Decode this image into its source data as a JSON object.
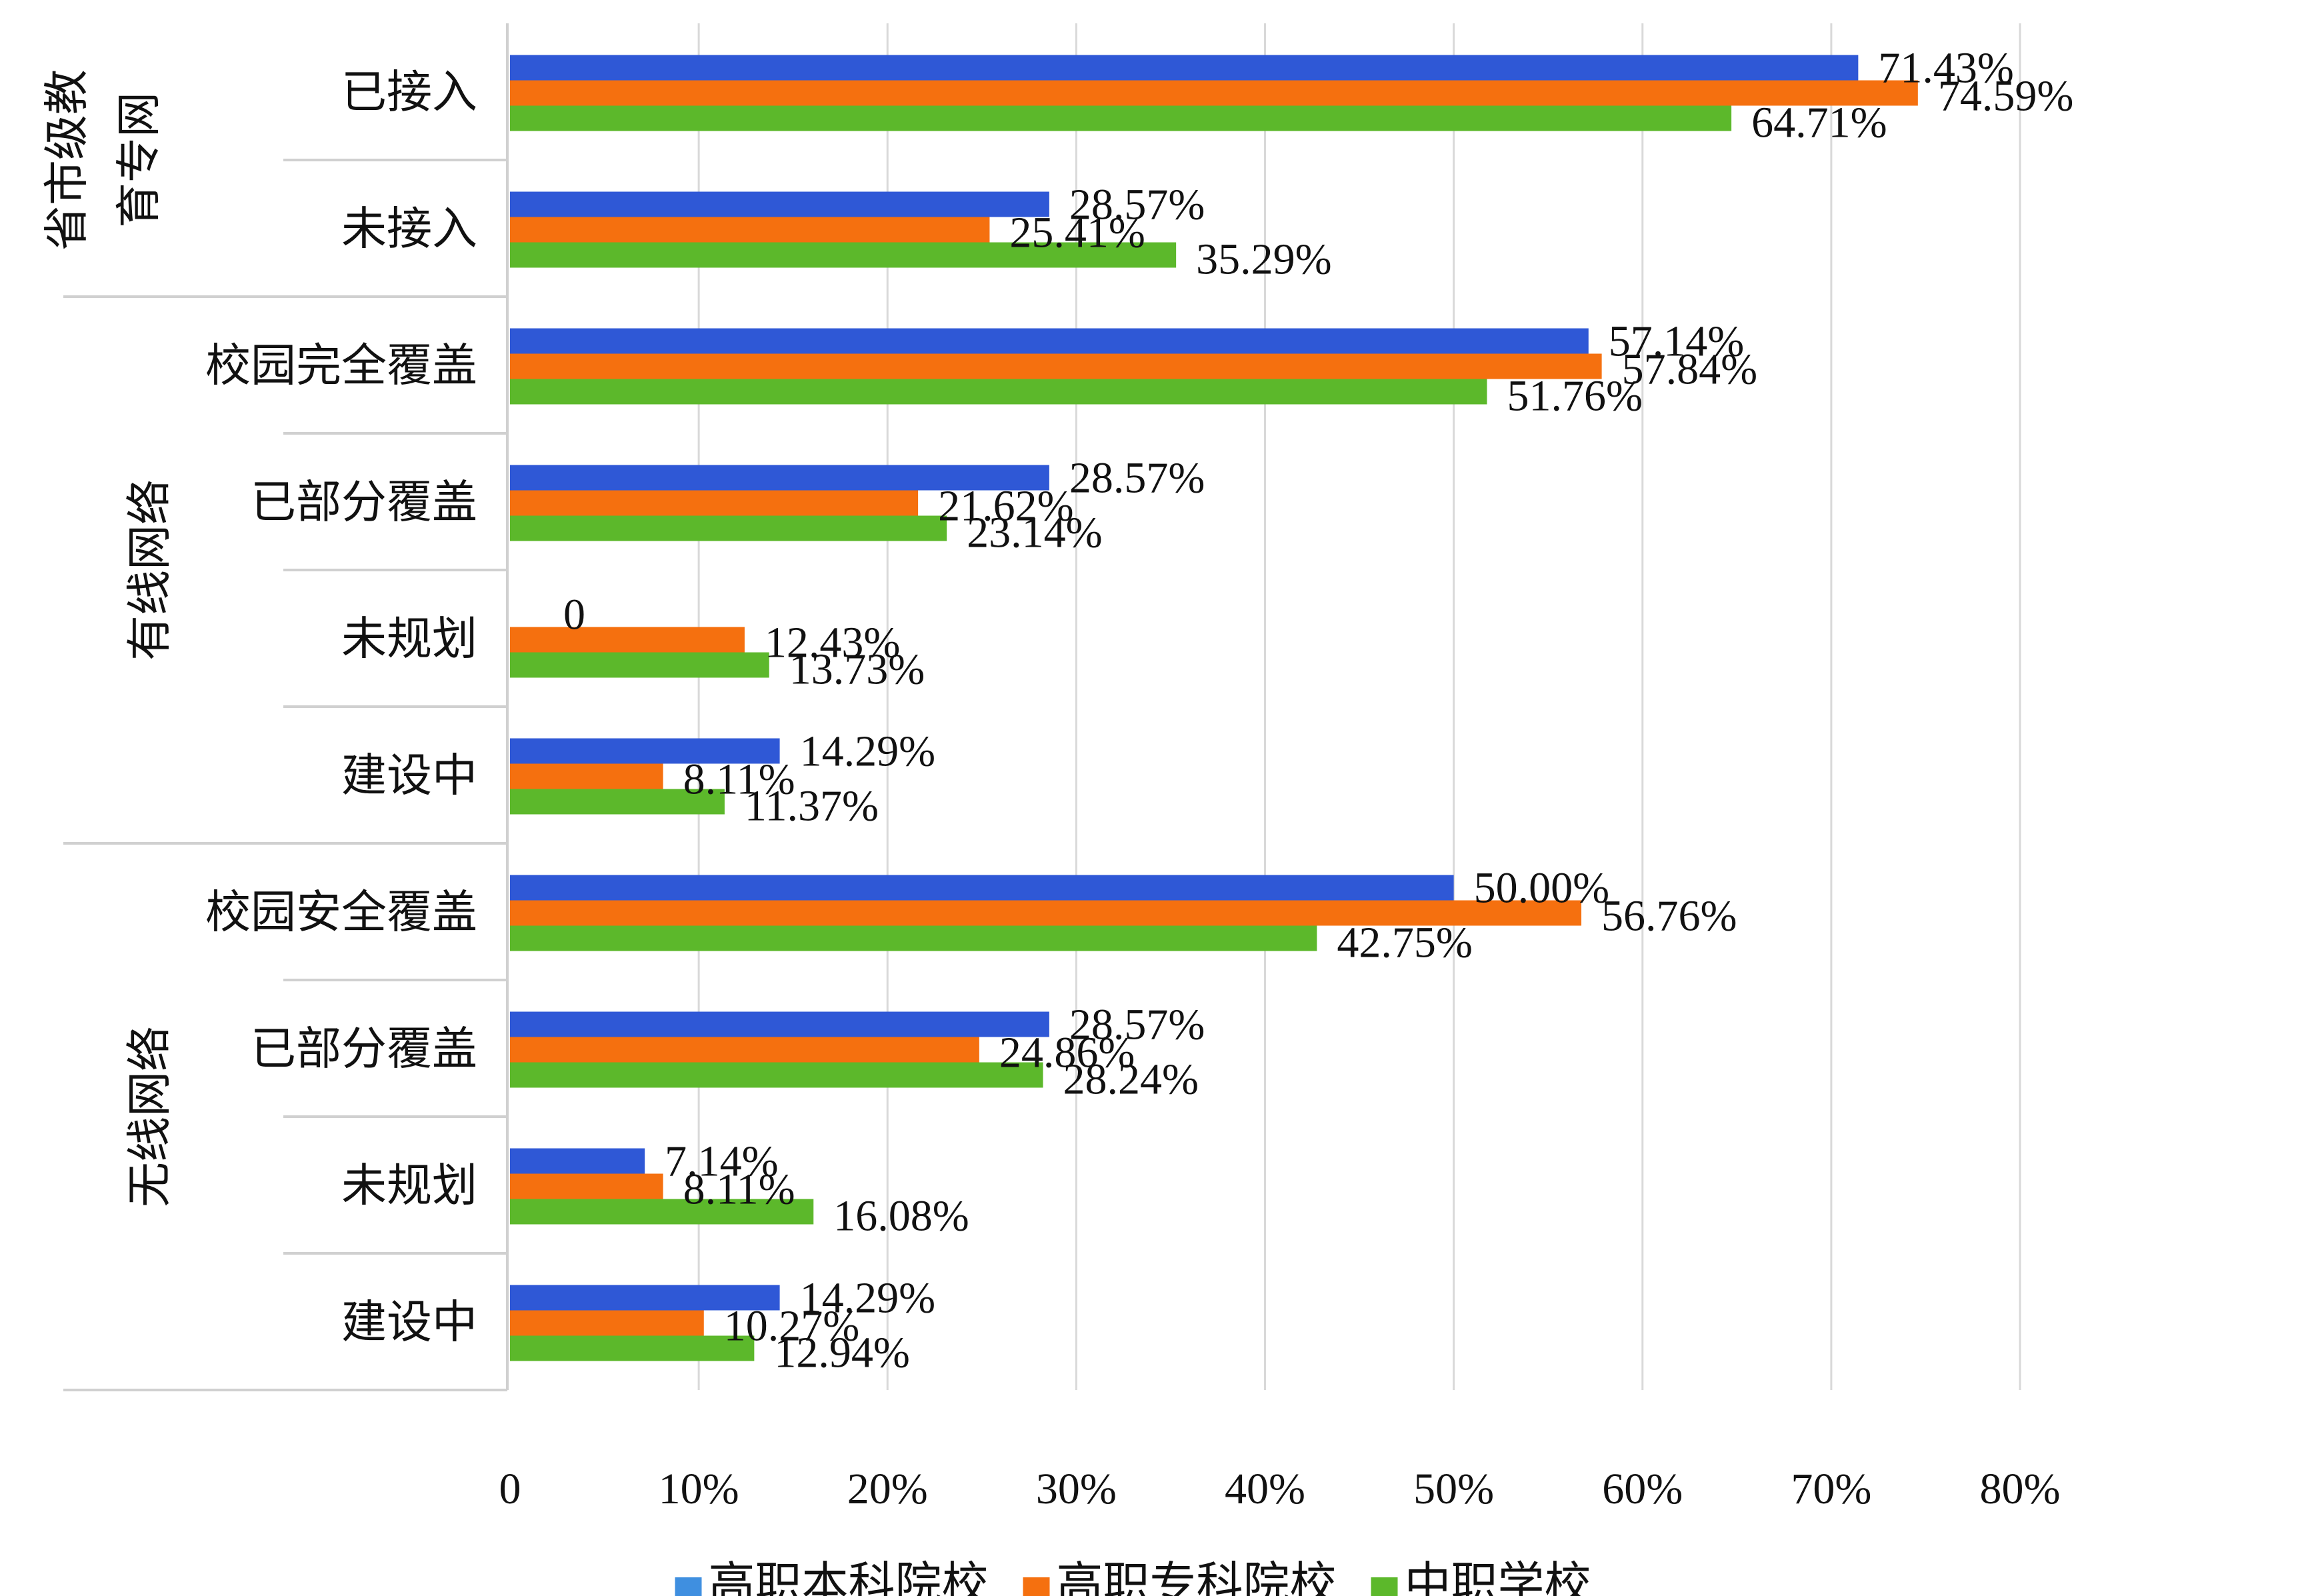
{
  "chart_data": {
    "type": "bar",
    "orientation": "horizontal",
    "grid": true,
    "legend_position": "bottom",
    "xlim": [
      0,
      80
    ],
    "x_ticks": [
      "0",
      "10%",
      "20%",
      "30%",
      "40%",
      "50%",
      "60%",
      "70%",
      "80%"
    ],
    "groups": [
      {
        "label_lines": [
          "省市级教",
          "育专网"
        ],
        "categories": [
          "已接入",
          "未接入"
        ]
      },
      {
        "label_lines": [
          "有线网络"
        ],
        "categories": [
          "校园完全覆盖",
          "已部分覆盖",
          "未规划",
          "建设中"
        ]
      },
      {
        "label_lines": [
          "无线网络"
        ],
        "categories": [
          "校园安全覆盖",
          "已部分覆盖",
          "未规划",
          "建设中"
        ]
      }
    ],
    "categories": [
      "已接入",
      "未接入",
      "校园完全覆盖",
      "已部分覆盖",
      "未规划",
      "建设中",
      "校园安全覆盖",
      "已部分覆盖",
      "未规划",
      "建设中"
    ],
    "series": [
      {
        "name": "高职本科院校",
        "color": "#2f58d6",
        "values": [
          71.43,
          28.57,
          57.14,
          28.57,
          0,
          14.29,
          50.0,
          28.57,
          7.14,
          14.29
        ],
        "labels": [
          "71.43%",
          "28.57%",
          "57.14%",
          "28.57%",
          "0",
          "14.29%",
          "50.00%",
          "28.57%",
          "7.14%",
          "14.29%"
        ]
      },
      {
        "name": "高职专科院校",
        "color": "#f5700f",
        "values": [
          74.59,
          25.41,
          57.84,
          21.62,
          12.43,
          8.11,
          56.76,
          24.86,
          8.11,
          10.27
        ],
        "labels": [
          "74.59%",
          "25.41%",
          "57.84%",
          "21.62%",
          "12.43%",
          "8.11%",
          "56.76%",
          "24.86%",
          "8.11%",
          "10.27%"
        ]
      },
      {
        "name": "中职学校",
        "color": "#5cb82b",
        "values": [
          64.71,
          35.29,
          51.76,
          23.14,
          13.73,
          11.37,
          42.75,
          28.24,
          16.08,
          12.94
        ],
        "labels": [
          "64.71%",
          "35.29%",
          "51.76%",
          "23.14%",
          "13.73%",
          "11.37%",
          "42.75%",
          "28.24%",
          "16.08%",
          "12.94%"
        ]
      }
    ],
    "legend_swatch_colors": [
      "#3f8fe0",
      "#f5700f",
      "#5cb82b"
    ]
  }
}
